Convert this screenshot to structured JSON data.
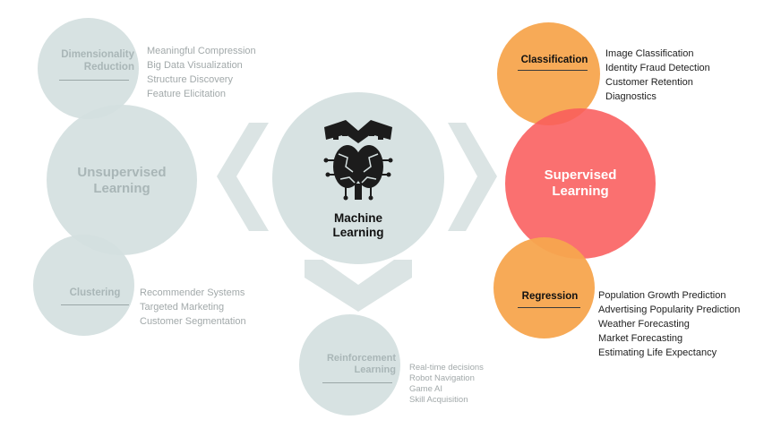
{
  "center": {
    "title": "Machine\nLearning",
    "icon": "brain-book-icon"
  },
  "unsupervised": {
    "title": "Unsupervised\nLearning",
    "dimensionality": {
      "title": "Dimensionality\nReduction",
      "items": [
        "Meaningful Compression",
        "Big Data Visualization",
        "Structure Discovery",
        "Feature Elicitation"
      ]
    },
    "clustering": {
      "title": "Clustering",
      "items": [
        "Recommender Systems",
        "Targeted Marketing",
        "Customer Segmentation"
      ]
    }
  },
  "supervised": {
    "title": "Supervised\nLearning",
    "classification": {
      "title": "Classification",
      "items": [
        "Image Classification",
        "Identity Fraud Detection",
        "Customer Retention",
        "Diagnostics"
      ]
    },
    "regression": {
      "title": "Regression",
      "items": [
        "Population Growth Prediction",
        "Advertising Popularity Prediction",
        "Weather Forecasting",
        "Market Forecasting",
        "Estimating Life Expectancy"
      ]
    }
  },
  "reinforcement": {
    "title": "Reinforcement\nLearning",
    "items": [
      "Real-time decisions",
      "Robot Navigation",
      "Game AI",
      "Skill Acquisition"
    ]
  },
  "colors": {
    "gray": "#d4dfdf",
    "orange": "#f7a54e",
    "red": "#f95c5c"
  }
}
